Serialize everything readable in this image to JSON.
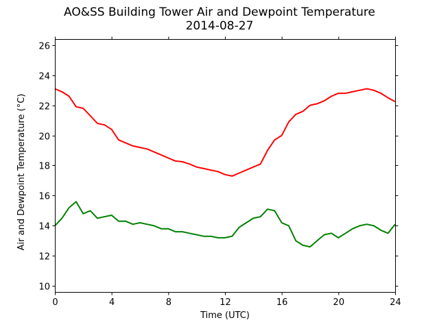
{
  "chart_data": {
    "type": "line",
    "title": "AO&SS Building Tower Air and Dewpoint Temperature",
    "subtitle": "2014-08-27",
    "xlabel": "Time (UTC)",
    "ylabel": "Air and Dewpoint Temperature (°C)",
    "xlim": [
      0,
      24
    ],
    "ylim": [
      9.6,
      26.4
    ],
    "xticks": [
      0,
      4,
      8,
      12,
      16,
      20,
      24
    ],
    "yticks": [
      10,
      12,
      14,
      16,
      18,
      20,
      22,
      24,
      26
    ],
    "grid": false,
    "series": [
      {
        "color": "#ff0000",
        "x": [
          0,
          0.5,
          1,
          1.5,
          2,
          2.5,
          3,
          3.5,
          4,
          4.5,
          5,
          5.5,
          6,
          6.5,
          7,
          7.5,
          8,
          8.5,
          9,
          9.5,
          10,
          10.5,
          11,
          11.5,
          12,
          12.5,
          13,
          13.5,
          14,
          14.5,
          15,
          15.5,
          16,
          16.5,
          17,
          17.5,
          18,
          18.5,
          19,
          19.5,
          20,
          20.5,
          21,
          21.5,
          22,
          22.5,
          23,
          23.5,
          24
        ],
        "values": [
          23.1,
          22.9,
          22.6,
          21.9,
          21.8,
          21.3,
          20.8,
          20.7,
          20.4,
          19.7,
          19.5,
          19.3,
          19.2,
          19.1,
          18.9,
          18.7,
          18.5,
          18.3,
          18.25,
          18.1,
          17.9,
          17.8,
          17.7,
          17.6,
          17.4,
          17.3,
          17.5,
          17.7,
          17.9,
          18.1,
          19.0,
          19.7,
          20.0,
          20.9,
          21.4,
          21.6,
          22.0,
          22.1,
          22.3,
          22.6,
          22.8,
          22.8,
          22.9,
          23.0,
          23.1,
          23.0,
          22.8,
          22.5,
          22.25
        ]
      },
      {
        "color": "#008000",
        "x": [
          0,
          0.5,
          1,
          1.5,
          2,
          2.5,
          3,
          3.5,
          4,
          4.5,
          5,
          5.5,
          6,
          6.5,
          7,
          7.5,
          8,
          8.5,
          9,
          9.5,
          10,
          10.5,
          11,
          11.5,
          12,
          12.5,
          13,
          13.5,
          14,
          14.5,
          15,
          15.5,
          16,
          16.5,
          17,
          17.5,
          18,
          18.5,
          19,
          19.5,
          20,
          20.5,
          21,
          21.5,
          22,
          22.5,
          23,
          23.5,
          24
        ],
        "values": [
          14.0,
          14.5,
          15.2,
          15.6,
          14.8,
          15.0,
          14.5,
          14.6,
          14.7,
          14.3,
          14.3,
          14.1,
          14.2,
          14.1,
          14.0,
          13.8,
          13.8,
          13.6,
          13.6,
          13.5,
          13.4,
          13.3,
          13.3,
          13.2,
          13.2,
          13.3,
          13.9,
          14.2,
          14.5,
          14.6,
          15.1,
          15.0,
          14.2,
          14.0,
          13.0,
          12.7,
          12.6,
          13.0,
          13.4,
          13.5,
          13.2,
          13.5,
          13.8,
          14.0,
          14.1,
          14.0,
          13.7,
          13.5,
          14.1
        ]
      }
    ]
  }
}
